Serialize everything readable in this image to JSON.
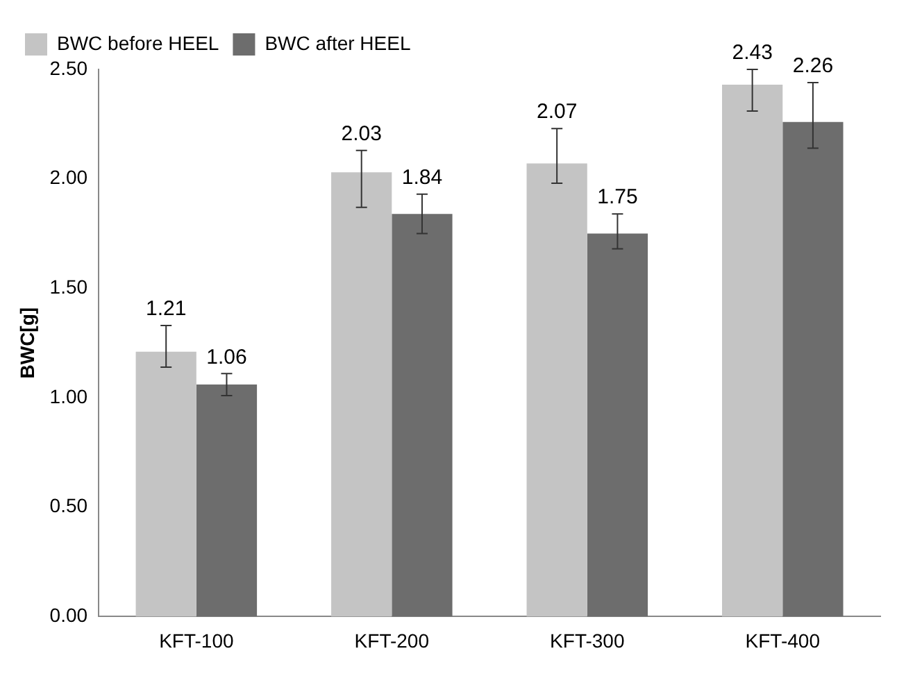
{
  "chart_data": {
    "type": "bar",
    "ylabel": "BWC[g]",
    "categories": [
      "KFT-100",
      "KFT-200",
      "KFT-300",
      "KFT-400"
    ],
    "series": [
      {
        "name": "BWC before HEEL",
        "color": "#c4c4c4",
        "values": [
          1.21,
          2.03,
          2.07,
          2.43
        ],
        "errors": [
          [
            1.14,
            1.33
          ],
          [
            1.87,
            2.13
          ],
          [
            1.98,
            2.23
          ],
          [
            2.31,
            2.5
          ]
        ]
      },
      {
        "name": "BWC after HEEL",
        "color": "#6d6d6d",
        "values": [
          1.06,
          1.84,
          1.75,
          2.26
        ],
        "errors": [
          [
            1.01,
            1.11
          ],
          [
            1.75,
            1.93
          ],
          [
            1.68,
            1.84
          ],
          [
            2.14,
            2.44
          ]
        ]
      }
    ],
    "ylim": [
      0,
      2.5
    ],
    "yticks": [
      {
        "value": 0,
        "label": "0.00"
      },
      {
        "value": 0.5,
        "label": "0.50"
      },
      {
        "value": 1,
        "label": "1.00"
      },
      {
        "value": 1.5,
        "label": "1.50"
      },
      {
        "value": 2,
        "label": "2.00"
      },
      {
        "value": 2.5,
        "label": "2.50"
      }
    ],
    "grid": false,
    "legend": "top left",
    "data_labels": true
  }
}
